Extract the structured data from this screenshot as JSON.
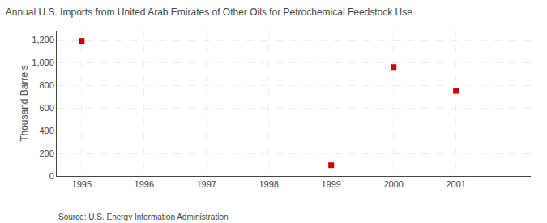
{
  "chart_data": {
    "type": "scatter",
    "title": "Annual U.S. Imports from United Arab Emirates of Other Oils for Petrochemical Feedstock Use",
    "ylabel": "Thousand Barrels",
    "annotations": [
      "Source: U.S. Energy Information Administration"
    ],
    "x": [
      1995,
      1999,
      2000,
      2001
    ],
    "values": [
      1190,
      95,
      960,
      750
    ],
    "color": "#cc0000",
    "marker": "square",
    "xlim": [
      1994.6,
      2002.2
    ],
    "xticks": [
      1995,
      1996,
      1997,
      1998,
      1999,
      2000,
      2001
    ],
    "ylim": [
      0,
      1280
    ],
    "yticks": [
      0,
      200,
      400,
      600,
      800,
      {
        "value": 1000,
        "label": "1,000"
      },
      {
        "value": 1200,
        "label": "1,200"
      }
    ],
    "grid": true
  }
}
